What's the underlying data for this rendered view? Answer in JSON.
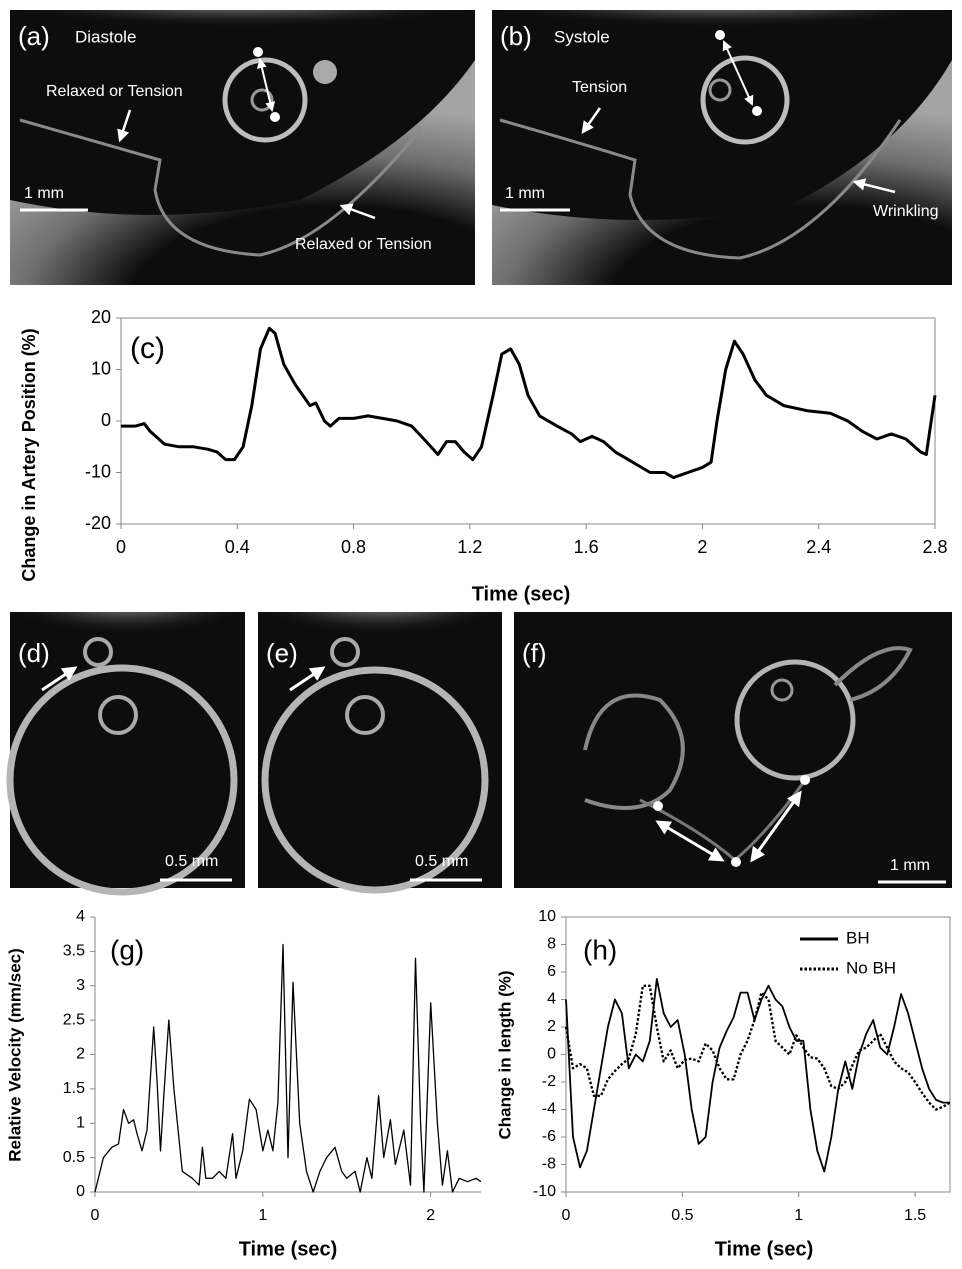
{
  "panels": [
    {
      "label": "(a)",
      "phase": "Diastole",
      "notes": [
        "Relaxed or Tension",
        "Relaxed or Tension"
      ],
      "scale": "1 mm"
    },
    {
      "label": "(b)",
      "phase": "Systole",
      "notes": [
        "Tension",
        "Wrinkling"
      ],
      "scale": "1 mm"
    },
    {
      "label": "(d)",
      "scale": "0.5 mm"
    },
    {
      "label": "(e)",
      "scale": "0.5 mm"
    },
    {
      "label": "(f)",
      "scale": "1 mm"
    }
  ],
  "chart_data": [
    {
      "type": "line",
      "panel_label": "(c)",
      "xlabel": "Time (sec)",
      "ylabel": "Change in Artery Position (%)",
      "color": "#000000",
      "x": [
        0,
        0.05,
        0.08,
        0.1,
        0.15,
        0.2,
        0.25,
        0.3,
        0.33,
        0.36,
        0.39,
        0.42,
        0.45,
        0.48,
        0.51,
        0.53,
        0.56,
        0.6,
        0.65,
        0.67,
        0.7,
        0.72,
        0.75,
        0.8,
        0.85,
        0.9,
        0.95,
        1.0,
        1.05,
        1.09,
        1.12,
        1.15,
        1.18,
        1.21,
        1.24,
        1.28,
        1.31,
        1.34,
        1.37,
        1.4,
        1.44,
        1.5,
        1.55,
        1.58,
        1.62,
        1.66,
        1.7,
        1.76,
        1.82,
        1.87,
        1.9,
        1.95,
        2.0,
        2.03,
        2.05,
        2.08,
        2.11,
        2.14,
        2.18,
        2.22,
        2.28,
        2.36,
        2.44,
        2.5,
        2.55,
        2.6,
        2.65,
        2.7,
        2.75,
        2.77,
        2.8
      ],
      "values": [
        -1,
        -1,
        -0.5,
        -2,
        -4.5,
        -5,
        -5,
        -5.5,
        -6,
        -7.5,
        -7.5,
        -5,
        3,
        14,
        18,
        17,
        11,
        7,
        3,
        3.5,
        0,
        -1,
        0.5,
        0.5,
        1,
        0.5,
        0,
        -1,
        -4,
        -6.5,
        -4,
        -4,
        -6,
        -7.5,
        -5,
        5,
        13,
        14,
        11,
        5,
        1,
        -1,
        -2.5,
        -4,
        -3,
        -4,
        -6,
        -8,
        -10,
        -10,
        -11,
        -10,
        -9,
        -8,
        0,
        10,
        15.5,
        13,
        8,
        5,
        3,
        2,
        1.5,
        0,
        -2,
        -3.5,
        -2.5,
        -3.5,
        -6,
        -6.5,
        5
      ],
      "xlim": [
        0,
        2.8
      ],
      "xticks": [
        0,
        0.4,
        0.8,
        1.2,
        1.6,
        2,
        2.4,
        2.8
      ],
      "ylim": [
        -20,
        20
      ],
      "yticks": [
        -20,
        -10,
        0,
        10,
        20
      ],
      "grid": false
    },
    {
      "type": "line",
      "panel_label": "(g)",
      "xlabel": "Time (sec)",
      "ylabel": "Relative Velocity (mm/sec)",
      "color": "#000000",
      "x": [
        0,
        0.05,
        0.1,
        0.14,
        0.17,
        0.2,
        0.23,
        0.25,
        0.28,
        0.31,
        0.35,
        0.37,
        0.39,
        0.41,
        0.44,
        0.47,
        0.52,
        0.58,
        0.62,
        0.64,
        0.66,
        0.7,
        0.74,
        0.78,
        0.82,
        0.84,
        0.88,
        0.92,
        0.96,
        1.0,
        1.03,
        1.06,
        1.09,
        1.12,
        1.15,
        1.18,
        1.22,
        1.26,
        1.3,
        1.34,
        1.38,
        1.43,
        1.47,
        1.5,
        1.55,
        1.58,
        1.62,
        1.65,
        1.69,
        1.72,
        1.76,
        1.79,
        1.84,
        1.88,
        1.91,
        1.94,
        1.96,
        2.0,
        2.04,
        2.07,
        2.1,
        2.13,
        2.17,
        2.22,
        2.27,
        2.3
      ],
      "values": [
        0,
        0.5,
        0.65,
        0.7,
        1.2,
        1.0,
        1.05,
        0.85,
        0.6,
        0.9,
        2.4,
        1.6,
        0.6,
        1.4,
        2.5,
        1.5,
        0.3,
        0.2,
        0.1,
        0.65,
        0.2,
        0.2,
        0.3,
        0.2,
        0.85,
        0.2,
        0.6,
        1.35,
        1.2,
        0.6,
        0.9,
        0.6,
        1.3,
        3.6,
        0.5,
        3.05,
        1.0,
        0.3,
        0,
        0.3,
        0.5,
        0.65,
        0.3,
        0.2,
        0.3,
        0,
        0.5,
        0.2,
        1.4,
        0.5,
        1.05,
        0.4,
        0.9,
        0.1,
        3.4,
        1.0,
        0,
        2.75,
        1.0,
        0.1,
        0.6,
        0,
        0.2,
        0.15,
        0.2,
        0.15
      ],
      "xlim": [
        0,
        2.3
      ],
      "xticks": [
        0,
        1,
        2
      ],
      "ylim": [
        0,
        4
      ],
      "yticks": [
        0,
        0.5,
        1,
        1.5,
        2,
        2.5,
        3,
        3.5,
        4
      ],
      "grid": false
    },
    {
      "type": "line",
      "panel_label": "(h)",
      "xlabel": "Time (sec)",
      "ylabel": "Change in length (%)",
      "legend": "upper right",
      "x": [
        0,
        0.03,
        0.06,
        0.09,
        0.12,
        0.15,
        0.18,
        0.21,
        0.24,
        0.27,
        0.3,
        0.33,
        0.36,
        0.39,
        0.42,
        0.45,
        0.48,
        0.51,
        0.54,
        0.57,
        0.6,
        0.63,
        0.66,
        0.69,
        0.72,
        0.75,
        0.78,
        0.81,
        0.84,
        0.87,
        0.9,
        0.93,
        0.96,
        0.99,
        1.02,
        1.05,
        1.08,
        1.11,
        1.14,
        1.17,
        1.2,
        1.23,
        1.26,
        1.29,
        1.32,
        1.35,
        1.38,
        1.41,
        1.44,
        1.47,
        1.5,
        1.53,
        1.56,
        1.59,
        1.62,
        1.65
      ],
      "series": [
        {
          "name": "BH",
          "color": "#000000",
          "linestyle": "solid",
          "values": [
            4,
            -6,
            -8.2,
            -7,
            -4,
            -1,
            2,
            4,
            3,
            -1,
            0,
            -0.5,
            1,
            5.5,
            3,
            2,
            2.5,
            0,
            -4,
            -6.5,
            -6,
            -2,
            0.5,
            1.7,
            2.7,
            4.5,
            4.5,
            2.5,
            4,
            5,
            4,
            3.5,
            2,
            1,
            1,
            -4,
            -7,
            -8.5,
            -6,
            -2.5,
            -0.5,
            -2.5,
            0,
            1.5,
            2.5,
            0.5,
            0,
            2,
            4.4,
            3,
            1,
            -1,
            -2.5,
            -3.3,
            -3.5,
            -3.5
          ]
        },
        {
          "name": "No BH",
          "color": "#000000",
          "linestyle": "dotted",
          "values": [
            2,
            -1,
            -0.7,
            -1,
            -3,
            -3,
            -1.8,
            -1.2,
            -0.7,
            -0.3,
            1.5,
            5,
            5,
            2,
            -0.5,
            0.3,
            -1,
            -0.4,
            -0.3,
            -0.5,
            0.8,
            0.3,
            -1,
            -1.8,
            -1.8,
            0,
            1,
            2.5,
            4.5,
            4,
            1,
            0.5,
            0,
            1.4,
            0.5,
            -0.2,
            -0.3,
            -1,
            -2.3,
            -2.5,
            -2,
            -0.8,
            0.3,
            0.5,
            1,
            1.5,
            0.5,
            -0.5,
            -1,
            -1.3,
            -2,
            -2.8,
            -3.5,
            -4,
            -3.8,
            -3.5
          ]
        }
      ],
      "xlim": [
        0,
        1.65
      ],
      "xticks": [
        0,
        0.5,
        1,
        1.5
      ],
      "ylim": [
        -10,
        10
      ],
      "yticks": [
        -10,
        -8,
        -6,
        -4,
        -2,
        0,
        2,
        4,
        6,
        8,
        10
      ],
      "grid": false
    }
  ]
}
